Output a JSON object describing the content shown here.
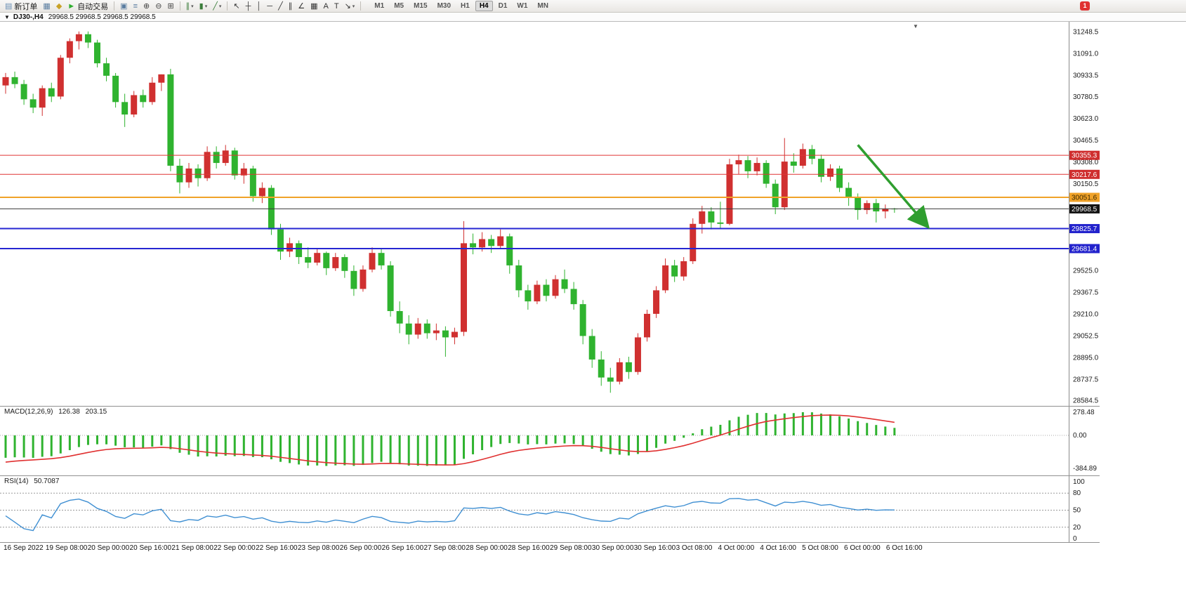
{
  "window": {
    "notifications_badge": "1"
  },
  "toolbar": {
    "dropdown_caret": "▾",
    "groups": [
      {
        "items": [
          {
            "name": "new-order-button",
            "glyph": "▤",
            "color": "#6a8fb5",
            "label": "新订单"
          },
          {
            "name": "new-chart-icon",
            "glyph": "▦",
            "color": "#5a7da0"
          },
          {
            "name": "metaeditor-icon",
            "glyph": "◆",
            "color": "#c9a227"
          },
          {
            "name": "algo-trading-button",
            "glyph": "►",
            "color": "#2fae2f",
            "label": "自动交易"
          }
        ]
      },
      {
        "items": [
          {
            "name": "data-window-icon",
            "glyph": "▣",
            "color": "#5a7da0"
          },
          {
            "name": "market-watch-icon",
            "glyph": "≡",
            "color": "#5a7da0"
          },
          {
            "name": "zoom-in-icon",
            "glyph": "⊕",
            "color": "#444444"
          },
          {
            "name": "zoom-out-icon",
            "glyph": "⊖",
            "color": "#444444"
          },
          {
            "name": "tile-windows-icon",
            "glyph": "⊞",
            "color": "#444444"
          }
        ]
      },
      {
        "items": [
          {
            "name": "chart-bars-icon",
            "glyph": "∥",
            "color": "#3a7d3a",
            "dropdown": true
          },
          {
            "name": "chart-candles-icon",
            "glyph": "▮",
            "color": "#3a7d3a",
            "dropdown": true
          },
          {
            "name": "chart-line-icon",
            "glyph": "╱",
            "color": "#3a7d3a",
            "dropdown": true
          }
        ]
      },
      {
        "items": [
          {
            "name": "cursor-icon",
            "glyph": "↖",
            "color": "#333333"
          },
          {
            "name": "crosshair-icon",
            "glyph": "┼",
            "color": "#333333"
          },
          {
            "name": "vertical-line-icon",
            "glyph": "│",
            "color": "#333333"
          },
          {
            "name": "horizontal-line-icon",
            "glyph": "─",
            "color": "#333333"
          },
          {
            "name": "trendline-icon",
            "glyph": "╱",
            "color": "#333333"
          },
          {
            "name": "channel-icon",
            "glyph": "∥",
            "color": "#333333"
          },
          {
            "name": "fibonacci-icon",
            "glyph": "∠",
            "color": "#333333"
          },
          {
            "name": "grid-icon",
            "glyph": "▦",
            "color": "#333333"
          },
          {
            "name": "text-icon",
            "glyph": "A",
            "color": "#333333"
          },
          {
            "name": "text-label-icon",
            "glyph": "T",
            "color": "#333333"
          },
          {
            "name": "arrows-icon",
            "glyph": "↘",
            "color": "#333333",
            "dropdown": true
          }
        ]
      }
    ],
    "timeframes": {
      "items": [
        "M1",
        "M5",
        "M15",
        "M30",
        "H1",
        "H4",
        "D1",
        "W1",
        "MN"
      ],
      "active": "H4"
    }
  },
  "titlebar": {
    "collapse_icon": "▼",
    "symbol": "DJ30-,H4",
    "quotes": "29968.5 29968.5 29968.5 29968.5"
  },
  "chart_data": {
    "type": "candlestick",
    "title": "DJ30-,H4",
    "symbol": "DJ30-",
    "timeframe": "H4",
    "shift_marker": "▼",
    "colors": {
      "up": "#d03030",
      "down": "#2fb32f",
      "macd_hist": "#2fb32f",
      "macd_signal": "#e03030",
      "rsi": "#3f8fd2"
    },
    "price_axis": {
      "min": 28545,
      "max": 31320,
      "labels": [
        "31248.5",
        "31091.0",
        "30933.5",
        "30780.5",
        "30623.0",
        "30465.5",
        "30308.0",
        "30150.5",
        "29525.0",
        "29367.5",
        "29210.0",
        "29052.5",
        "28895.0",
        "28737.5",
        "28584.5"
      ]
    },
    "x_labels": [
      "16 Sep 2022",
      "19 Sep 08:00",
      "20 Sep 00:00",
      "20 Sep 16:00",
      "21 Sep 08:00",
      "22 Sep 00:00",
      "22 Sep 16:00",
      "23 Sep 08:00",
      "26 Sep 00:00",
      "26 Sep 16:00",
      "27 Sep 08:00",
      "28 Sep 00:00",
      "28 Sep 16:00",
      "29 Sep 08:00",
      "30 Sep 00:00",
      "30 Sep 16:00",
      "3 Oct 08:00",
      "4 Oct 00:00",
      "4 Oct 16:00",
      "5 Oct 08:00",
      "6 Oct 00:00",
      "6 Oct 16:00"
    ],
    "ohlc": [
      [
        30860,
        30950,
        30800,
        30920
      ],
      [
        30920,
        30960,
        30840,
        30870
      ],
      [
        30870,
        30900,
        30720,
        30760
      ],
      [
        30760,
        30800,
        30660,
        30700
      ],
      [
        30700,
        30860,
        30640,
        30840
      ],
      [
        30840,
        30880,
        30740,
        30780
      ],
      [
        30780,
        31080,
        30760,
        31060
      ],
      [
        31060,
        31200,
        31020,
        31180
      ],
      [
        31180,
        31250,
        31120,
        31230
      ],
      [
        31230,
        31250,
        31130,
        31170
      ],
      [
        31170,
        31190,
        30990,
        31020
      ],
      [
        31020,
        31060,
        30890,
        30930
      ],
      [
        30930,
        30950,
        30700,
        30740
      ],
      [
        30740,
        30800,
        30560,
        30650
      ],
      [
        30650,
        30820,
        30630,
        30790
      ],
      [
        30790,
        30830,
        30700,
        30740
      ],
      [
        30740,
        30920,
        30720,
        30880
      ],
      [
        30880,
        30940,
        30820,
        30940
      ],
      [
        30940,
        30980,
        30240,
        30280
      ],
      [
        30280,
        30330,
        30080,
        30160
      ],
      [
        30160,
        30300,
        30120,
        30260
      ],
      [
        30260,
        30290,
        30130,
        30190
      ],
      [
        30190,
        30420,
        30170,
        30380
      ],
      [
        30380,
        30420,
        30260,
        30300
      ],
      [
        30300,
        30430,
        30280,
        30390
      ],
      [
        30390,
        30410,
        30180,
        30210
      ],
      [
        30210,
        30300,
        30150,
        30260
      ],
      [
        30260,
        30280,
        30020,
        30060
      ],
      [
        30060,
        30160,
        30010,
        30120
      ],
      [
        30120,
        30140,
        29780,
        29820
      ],
      [
        29820,
        29860,
        29600,
        29660
      ],
      [
        29660,
        29760,
        29620,
        29720
      ],
      [
        29720,
        29740,
        29570,
        29620
      ],
      [
        29620,
        29690,
        29540,
        29580
      ],
      [
        29580,
        29680,
        29560,
        29650
      ],
      [
        29650,
        29660,
        29490,
        29540
      ],
      [
        29540,
        29650,
        29520,
        29620
      ],
      [
        29620,
        29640,
        29470,
        29520
      ],
      [
        29520,
        29560,
        29340,
        29390
      ],
      [
        29390,
        29560,
        29370,
        29530
      ],
      [
        29530,
        29690,
        29510,
        29650
      ],
      [
        29650,
        29680,
        29530,
        29560
      ],
      [
        29560,
        29590,
        29190,
        29230
      ],
      [
        29230,
        29300,
        29070,
        29140
      ],
      [
        29140,
        29200,
        28990,
        29060
      ],
      [
        29060,
        29180,
        29030,
        29140
      ],
      [
        29140,
        29170,
        29030,
        29070
      ],
      [
        29070,
        29140,
        29020,
        29090
      ],
      [
        29090,
        29120,
        28900,
        29040
      ],
      [
        29040,
        29110,
        28990,
        29080
      ],
      [
        29080,
        29880,
        29050,
        29720
      ],
      [
        29720,
        29790,
        29640,
        29690
      ],
      [
        29690,
        29800,
        29660,
        29750
      ],
      [
        29750,
        29780,
        29650,
        29700
      ],
      [
        29700,
        29820,
        29680,
        29770
      ],
      [
        29770,
        29790,
        29500,
        29560
      ],
      [
        29560,
        29600,
        29330,
        29380
      ],
      [
        29380,
        29420,
        29240,
        29300
      ],
      [
        29300,
        29450,
        29280,
        29420
      ],
      [
        29420,
        29460,
        29300,
        29340
      ],
      [
        29340,
        29490,
        29320,
        29460
      ],
      [
        29460,
        29530,
        29360,
        29390
      ],
      [
        29390,
        29440,
        29240,
        29280
      ],
      [
        29280,
        29310,
        28990,
        29050
      ],
      [
        29050,
        29100,
        28820,
        28880
      ],
      [
        28880,
        28940,
        28690,
        28750
      ],
      [
        28750,
        28820,
        28640,
        28720
      ],
      [
        28720,
        28890,
        28700,
        28860
      ],
      [
        28860,
        28900,
        28740,
        28790
      ],
      [
        28790,
        29070,
        28770,
        29040
      ],
      [
        29040,
        29240,
        29010,
        29210
      ],
      [
        29210,
        29410,
        29180,
        29380
      ],
      [
        29380,
        29610,
        29360,
        29560
      ],
      [
        29560,
        29600,
        29440,
        29480
      ],
      [
        29480,
        29620,
        29450,
        29590
      ],
      [
        29590,
        29900,
        29570,
        29860
      ],
      [
        29860,
        29990,
        29790,
        29950
      ],
      [
        29950,
        29980,
        29820,
        29870
      ],
      [
        29870,
        30020,
        29830,
        29860
      ],
      [
        29860,
        30330,
        29850,
        30290
      ],
      [
        30290,
        30360,
        30220,
        30320
      ],
      [
        30320,
        30350,
        30190,
        30240
      ],
      [
        30240,
        30340,
        30210,
        30300
      ],
      [
        30300,
        30320,
        30120,
        30150
      ],
      [
        30150,
        30180,
        29930,
        29980
      ],
      [
        29980,
        30480,
        29960,
        30310
      ],
      [
        30310,
        30370,
        30230,
        30280
      ],
      [
        30280,
        30440,
        30260,
        30400
      ],
      [
        30400,
        30430,
        30290,
        30330
      ],
      [
        30330,
        30360,
        30160,
        30200
      ],
      [
        30200,
        30290,
        30170,
        30260
      ],
      [
        30260,
        30280,
        30090,
        30120
      ],
      [
        30120,
        30160,
        29990,
        30050
      ],
      [
        30050,
        30080,
        29890,
        29960
      ],
      [
        29960,
        30030,
        29930,
        30010
      ],
      [
        30010,
        30040,
        29870,
        29950
      ],
      [
        29950,
        30000,
        29900,
        29970
      ],
      [
        29970,
        29975,
        29940,
        29968.5
      ]
    ],
    "levels": [
      {
        "name": "resistance-1",
        "price": 30355.3,
        "label": "30355.3",
        "line_color": "#e03535",
        "label_bg": "#cf2e2e",
        "label_fg": "#ffffff",
        "width": 1
      },
      {
        "name": "resistance-2",
        "price": 30217.6,
        "label": "30217.6",
        "line_color": "#e03535",
        "label_bg": "#cf2e2e",
        "label_fg": "#ffffff",
        "width": 1
      },
      {
        "name": "pivot",
        "price": 30051.6,
        "label": "30051.6",
        "line_color": "#f0a228",
        "label_bg": "#f0a228",
        "label_fg": "#3a2800",
        "width": 2
      },
      {
        "name": "bid",
        "price": 29968.5,
        "label": "29968.5",
        "line_color": "#3a3a3a",
        "label_bg": "#141414",
        "label_fg": "#ffffff",
        "width": 1
      },
      {
        "name": "support-1",
        "price": 29825.7,
        "label": "29825.7",
        "line_color": "#2626d2",
        "label_bg": "#2222cc",
        "label_fg": "#ffffff",
        "width": 2
      },
      {
        "name": "support-2",
        "price": 29681.4,
        "label": "29681.4",
        "line_color": "#2626d2",
        "label_bg": "#2222cc",
        "label_fg": "#ffffff",
        "width": 2
      }
    ],
    "arrow": {
      "from_bar": 93,
      "from_price": 30430,
      "to_bar": 100.5,
      "to_price": 29850,
      "color": "#2f9e2f",
      "width": 3.5
    },
    "macd": {
      "label": "MACD(12,26,9)",
      "value_main": "126.38",
      "value_signal": "203.15",
      "axis_labels": [
        "278.48",
        "0.00",
        "-384.89"
      ],
      "seeds": {
        "ema12": 31050,
        "ema26": 31300,
        "signal": -300
      }
    },
    "rsi": {
      "label": "RSI(14)",
      "value": "50.7087",
      "period": 14,
      "axis_labels": [
        "100",
        "80",
        "50",
        "20",
        "0"
      ],
      "level_lines": [
        80,
        50,
        20
      ],
      "seeds": {
        "avg_gain": 4,
        "avg_loss": 6
      }
    }
  }
}
